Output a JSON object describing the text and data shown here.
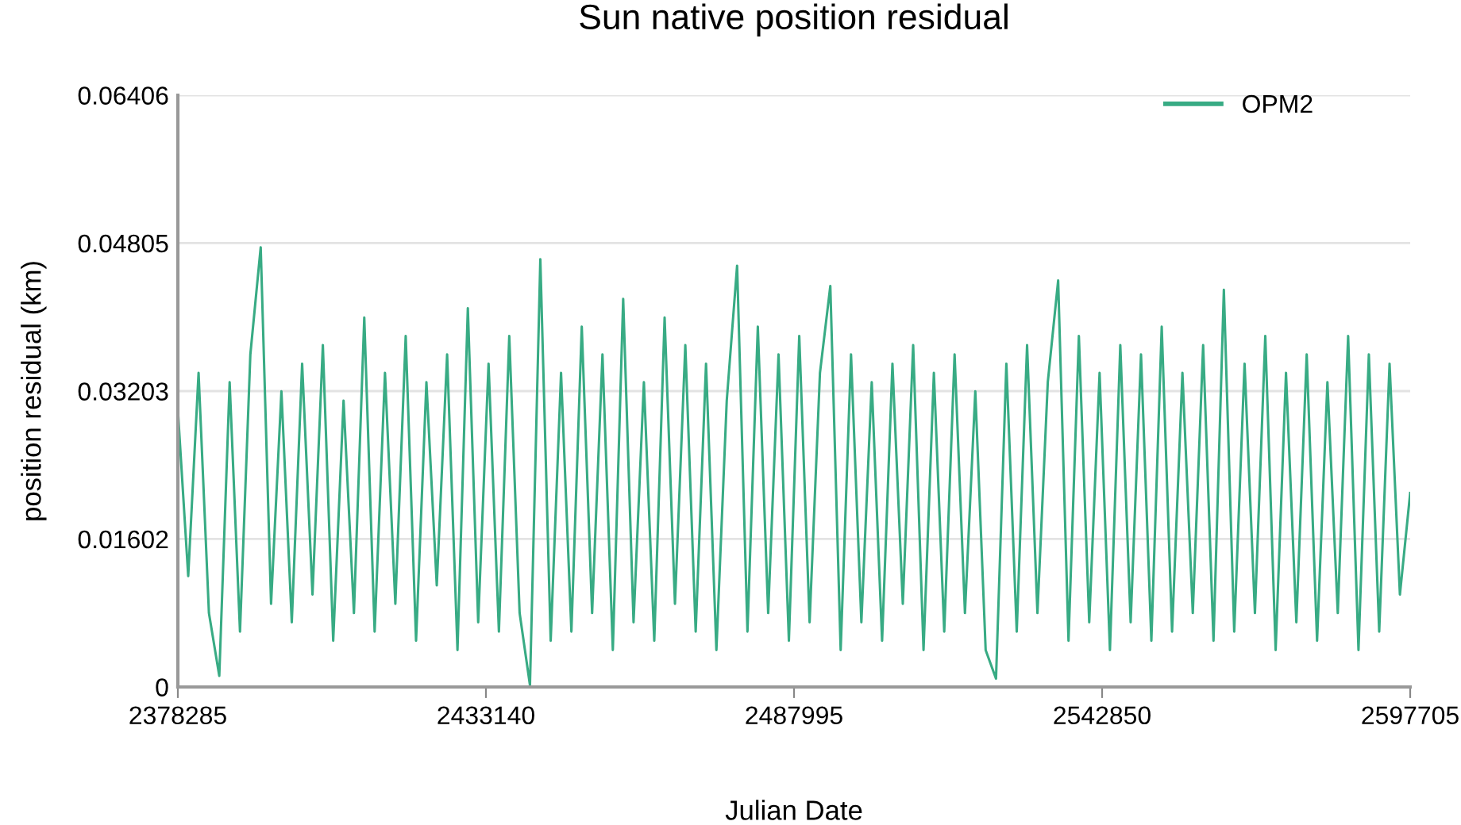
{
  "chart_data": {
    "type": "line",
    "title": "Sun native position residual",
    "xlabel": "Julian Date",
    "ylabel": "position residual (km)",
    "xlim": [
      2378285,
      2597705
    ],
    "xticks": [
      2378285,
      2433140,
      2487995,
      2542850,
      2597705
    ],
    "ylim": [
      0,
      0.06406
    ],
    "yticks": [
      0,
      0.01602,
      0.03203,
      0.04805,
      0.06406
    ],
    "grid": "y",
    "legend": "top right",
    "marker": "none",
    "line_style": "solid",
    "series": [
      {
        "name": "OPM2",
        "color": "#38ab84",
        "x": [
          2378285,
          2380129,
          2381973,
          2383817,
          2385661,
          2387505,
          2389349,
          2391193,
          2393037,
          2394881,
          2396725,
          2398569,
          2400413,
          2402257,
          2404101,
          2405945,
          2407789,
          2409633,
          2411477,
          2413321,
          2415165,
          2417009,
          2418853,
          2420697,
          2422541,
          2424385,
          2426229,
          2428073,
          2429917,
          2431761,
          2433605,
          2435449,
          2437293,
          2439137,
          2440981,
          2442825,
          2444669,
          2446513,
          2448357,
          2450201,
          2452045,
          2453889,
          2455733,
          2457577,
          2459421,
          2461265,
          2463109,
          2464953,
          2466797,
          2468641,
          2470485,
          2472329,
          2474173,
          2476017,
          2477861,
          2479705,
          2481549,
          2483393,
          2485237,
          2487081,
          2488925,
          2490769,
          2492613,
          2494457,
          2496301,
          2498145,
          2499989,
          2501833,
          2503677,
          2505521,
          2507365,
          2509209,
          2511053,
          2512897,
          2514741,
          2516585,
          2518429,
          2520273,
          2522117,
          2523961,
          2525805,
          2527649,
          2529493,
          2531337,
          2533181,
          2535025,
          2536869,
          2538713,
          2540557,
          2542401,
          2544245,
          2546089,
          2547933,
          2549777,
          2551621,
          2553465,
          2555309,
          2557153,
          2558997,
          2560841,
          2562685,
          2564529,
          2566373,
          2568217,
          2570061,
          2571905,
          2573749,
          2575593,
          2577437,
          2579281,
          2581125,
          2582969,
          2584813,
          2586657,
          2588501,
          2590345,
          2592189,
          2594033,
          2595877,
          2597705
        ],
        "values": [
          0.03,
          0.012,
          0.034,
          0.008,
          0.0012,
          0.033,
          0.006,
          0.036,
          0.0476,
          0.009,
          0.032,
          0.007,
          0.035,
          0.01,
          0.037,
          0.005,
          0.031,
          0.008,
          0.04,
          0.006,
          0.034,
          0.009,
          0.038,
          0.005,
          0.033,
          0.011,
          0.036,
          0.004,
          0.041,
          0.007,
          0.035,
          0.006,
          0.038,
          0.008,
          0.0002,
          0.0463,
          0.005,
          0.034,
          0.006,
          0.039,
          0.008,
          0.036,
          0.004,
          0.042,
          0.007,
          0.033,
          0.005,
          0.04,
          0.009,
          0.037,
          0.006,
          0.035,
          0.004,
          0.031,
          0.0456,
          0.006,
          0.039,
          0.008,
          0.036,
          0.005,
          0.038,
          0.007,
          0.034,
          0.0434,
          0.004,
          0.036,
          0.007,
          0.033,
          0.005,
          0.035,
          0.009,
          0.037,
          0.004,
          0.034,
          0.006,
          0.036,
          0.008,
          0.032,
          0.004,
          0.0009,
          0.035,
          0.006,
          0.037,
          0.008,
          0.033,
          0.044,
          0.005,
          0.038,
          0.007,
          0.034,
          0.004,
          0.037,
          0.007,
          0.036,
          0.005,
          0.039,
          0.006,
          0.034,
          0.008,
          0.037,
          0.005,
          0.043,
          0.006,
          0.035,
          0.008,
          0.038,
          0.004,
          0.034,
          0.007,
          0.036,
          0.005,
          0.033,
          0.008,
          0.038,
          0.004,
          0.036,
          0.006,
          0.035,
          0.01,
          0.021
        ]
      }
    ]
  }
}
